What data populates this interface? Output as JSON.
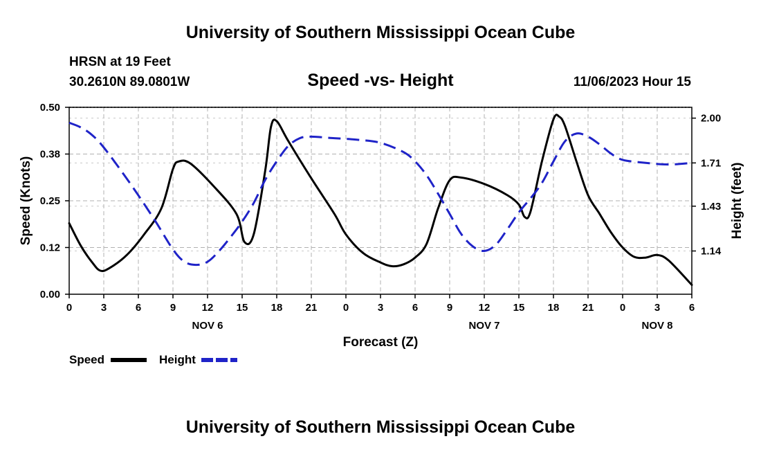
{
  "header": {
    "title": "University of Southern Mississippi Ocean Cube",
    "station": "HRSN at 19 Feet",
    "location": "30.2610N  89.0801W",
    "subtitle": "Speed -vs- Height",
    "timestamp": "11/06/2023 Hour 15",
    "footer_title": "University of Southern Mississippi Ocean Cube"
  },
  "legend": {
    "speed_label": "Speed",
    "height_label": "Height"
  },
  "chart_data": {
    "type": "line",
    "title": "Speed -vs- Height",
    "xlabel": "Forecast (Z)",
    "ylabel": "Speed (Knots)",
    "y2label": "Height (feet)",
    "x_unit": "hours since 11/06 00Z",
    "xlim": [
      0,
      54
    ],
    "ylim": [
      0.0,
      0.5
    ],
    "y2lim": [
      0.86,
      2.07
    ],
    "x_ticks": [
      0,
      3,
      6,
      9,
      12,
      15,
      18,
      21,
      24,
      27,
      30,
      33,
      36,
      39,
      42,
      45,
      48,
      51,
      54
    ],
    "x_tick_labels": [
      "0",
      "3",
      "6",
      "9",
      "12",
      "15",
      "18",
      "21",
      "0",
      "3",
      "6",
      "9",
      "12",
      "15",
      "18",
      "21",
      "0",
      "3",
      "6"
    ],
    "date_labels": [
      {
        "x": 12,
        "label": "NOV 6"
      },
      {
        "x": 36,
        "label": "NOV 7"
      },
      {
        "x": 51,
        "label": "NOV 8"
      }
    ],
    "y_ticks": [
      0.0,
      0.125,
      0.25,
      0.375,
      0.5
    ],
    "y_tick_labels": [
      "0.00",
      "0.12",
      "0.25",
      "0.38",
      "0.50"
    ],
    "y2_ticks": [
      1.14,
      1.43,
      1.71,
      2.0
    ],
    "y2_tick_labels": [
      "1.14",
      "1.43",
      "1.71",
      "2.00"
    ],
    "grid": true,
    "series": [
      {
        "name": "Speed",
        "axis": "left",
        "color": "#000000",
        "dash": "solid",
        "x": [
          0,
          1,
          2,
          2.7,
          3.5,
          5,
          6.5,
          8,
          9,
          9.5,
          10.5,
          12.5,
          14.5,
          15.2,
          16,
          17,
          17.5,
          18,
          19,
          21,
          23,
          24,
          25.5,
          27,
          28,
          29,
          30,
          31,
          32,
          33,
          34,
          36,
          38,
          39,
          39.5,
          40,
          41,
          42,
          42.5,
          43,
          44,
          45,
          46,
          47,
          48,
          49,
          50,
          51,
          52,
          54
        ],
        "y": [
          0.19,
          0.13,
          0.085,
          0.063,
          0.07,
          0.105,
          0.16,
          0.23,
          0.335,
          0.355,
          0.35,
          0.29,
          0.215,
          0.14,
          0.16,
          0.33,
          0.448,
          0.463,
          0.41,
          0.31,
          0.215,
          0.16,
          0.11,
          0.085,
          0.075,
          0.08,
          0.098,
          0.135,
          0.23,
          0.305,
          0.312,
          0.295,
          0.265,
          0.24,
          0.207,
          0.22,
          0.355,
          0.468,
          0.475,
          0.45,
          0.355,
          0.265,
          0.215,
          0.165,
          0.125,
          0.1,
          0.098,
          0.105,
          0.09,
          0.025
        ]
      },
      {
        "name": "Height",
        "axis": "right",
        "color": "#1f23c8",
        "dash": "dashed",
        "x": [
          0,
          1,
          2,
          3,
          4.5,
          6,
          7.5,
          9,
          10,
          11,
          12,
          13,
          14,
          15,
          16,
          17,
          18,
          19,
          20,
          21,
          23,
          25,
          27,
          29,
          30,
          31,
          32,
          33,
          34,
          35,
          36,
          37,
          38,
          39,
          40,
          41,
          42,
          43,
          44,
          45,
          46,
          47,
          48,
          50,
          52,
          54
        ],
        "y": [
          1.97,
          1.94,
          1.89,
          1.81,
          1.66,
          1.5,
          1.33,
          1.15,
          1.07,
          1.05,
          1.07,
          1.14,
          1.23,
          1.33,
          1.45,
          1.6,
          1.72,
          1.82,
          1.87,
          1.88,
          1.87,
          1.86,
          1.84,
          1.78,
          1.72,
          1.63,
          1.51,
          1.38,
          1.25,
          1.17,
          1.14,
          1.18,
          1.28,
          1.39,
          1.48,
          1.58,
          1.72,
          1.85,
          1.9,
          1.88,
          1.83,
          1.77,
          1.73,
          1.71,
          1.7,
          1.71
        ]
      }
    ]
  }
}
